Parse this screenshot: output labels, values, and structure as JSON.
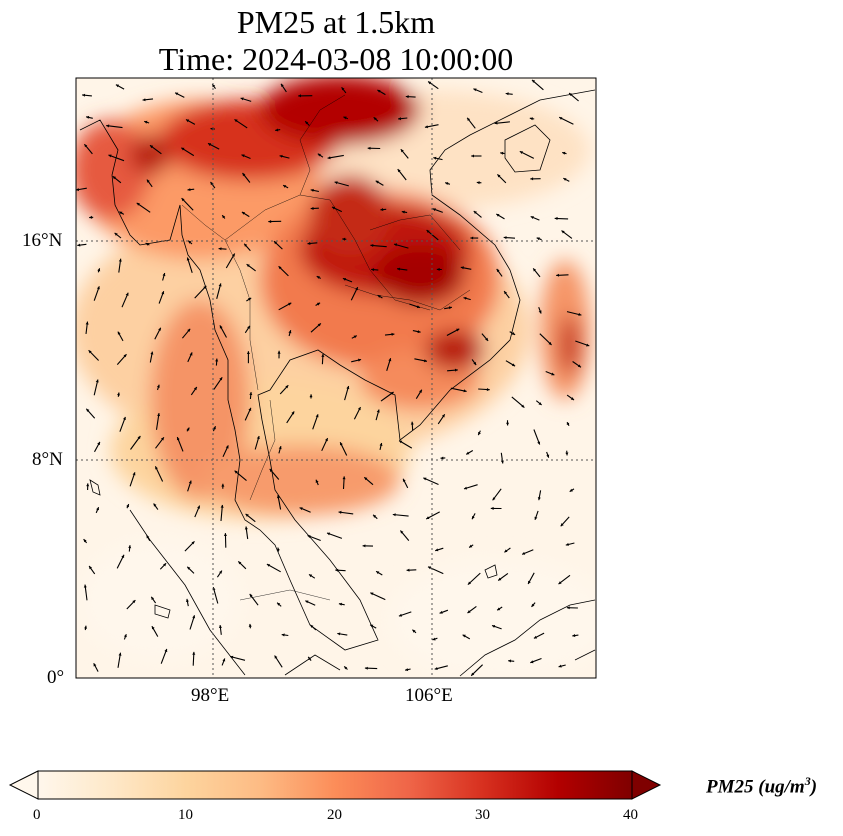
{
  "title": {
    "line1": "PM25 at 1.5km",
    "line2": "Time: 2024-03-08 10:00:00"
  },
  "map": {
    "region": "Indochina / South China Sea",
    "lat_range": [
      0,
      22
    ],
    "lon_range": [
      93,
      112
    ],
    "lat_ticks": [
      "16°N",
      "8°N",
      "0°"
    ],
    "lon_ticks": [
      "98°E",
      "106°E"
    ],
    "gridlines": "dotted",
    "colormap": "OrRd",
    "arrows": "wind vectors"
  },
  "colorbar": {
    "ticks": [
      "0",
      "10",
      "20",
      "30",
      "40"
    ],
    "label_main": "PM25 (ug/m",
    "label_sup": "3",
    "label_end": ")",
    "min": 0,
    "max": 40,
    "extend": "both",
    "colors": [
      "#fff7ec",
      "#fee8c8",
      "#fdd49e",
      "#fdbb84",
      "#fc8d59",
      "#ef6548",
      "#d7301f",
      "#b30000",
      "#7f0000"
    ]
  }
}
